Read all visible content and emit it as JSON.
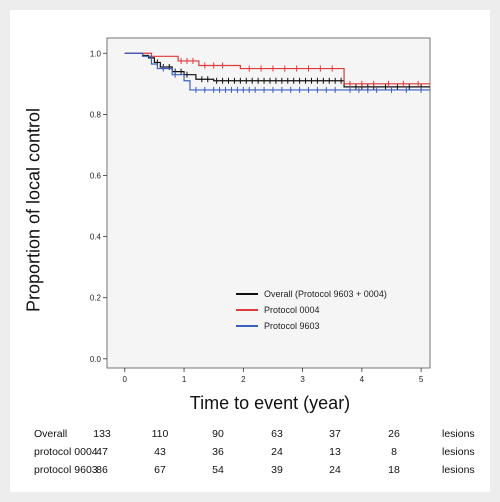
{
  "chart_data": {
    "type": "line",
    "ylabel": "Proportion of local control",
    "xlabel": "Time to event (year)",
    "xlim": [
      -0.3,
      5.15
    ],
    "ylim": [
      -0.03,
      1.05
    ],
    "x_ticks": [
      0,
      1,
      2,
      3,
      4,
      5
    ],
    "y_ticks": [
      0.0,
      0.2,
      0.4,
      0.6,
      0.8,
      1.0
    ],
    "y_tick_labels": [
      "0.0",
      "0.2",
      "0.4",
      "0.6",
      "0.8",
      "1.0"
    ],
    "grid": false,
    "legend_position": "bottom-right",
    "series": [
      {
        "name": "Overall (Protocol 9603 + 0004)",
        "color": "#111111",
        "steps": [
          [
            0,
            1.0
          ],
          [
            0.3,
            0.993
          ],
          [
            0.4,
            0.985
          ],
          [
            0.5,
            0.97
          ],
          [
            0.6,
            0.955
          ],
          [
            0.8,
            0.94
          ],
          [
            1.0,
            0.93
          ],
          [
            1.2,
            0.915
          ],
          [
            1.5,
            0.91
          ],
          [
            3.7,
            0.89
          ],
          [
            5.15,
            0.89
          ]
        ],
        "censor_x": [
          0.55,
          0.65,
          0.75,
          0.85,
          0.95,
          1.05,
          1.3,
          1.4,
          1.55,
          1.65,
          1.75,
          1.85,
          1.95,
          2.05,
          2.15,
          2.25,
          2.35,
          2.45,
          2.55,
          2.65,
          2.75,
          2.85,
          2.95,
          3.05,
          3.15,
          3.25,
          3.35,
          3.45,
          3.55,
          3.65,
          3.8,
          3.9,
          4.0,
          4.1,
          4.2,
          4.4,
          4.6,
          4.8,
          5.0
        ]
      },
      {
        "name": "Protocol 0004",
        "color": "#e03a3a",
        "steps": [
          [
            0,
            1.0
          ],
          [
            0.45,
            0.99
          ],
          [
            0.9,
            0.975
          ],
          [
            1.25,
            0.96
          ],
          [
            1.95,
            0.95
          ],
          [
            3.7,
            0.9
          ],
          [
            5.15,
            0.9
          ]
        ],
        "censor_x": [
          0.95,
          1.05,
          1.15,
          1.35,
          1.5,
          1.65,
          2.1,
          2.3,
          2.5,
          2.7,
          2.9,
          3.1,
          3.3,
          3.5,
          3.8,
          4.0,
          4.2,
          4.45,
          4.7,
          4.95
        ]
      },
      {
        "name": "Protocol 9603",
        "color": "#3b5fc0",
        "steps": [
          [
            0,
            1.0
          ],
          [
            0.3,
            0.99
          ],
          [
            0.45,
            0.965
          ],
          [
            0.55,
            0.95
          ],
          [
            0.8,
            0.93
          ],
          [
            1.0,
            0.91
          ],
          [
            1.1,
            0.88
          ],
          [
            5.15,
            0.88
          ]
        ],
        "censor_x": [
          0.65,
          0.85,
          1.2,
          1.35,
          1.5,
          1.6,
          1.7,
          1.8,
          1.9,
          2.0,
          2.1,
          2.2,
          2.35,
          2.5,
          2.65,
          2.8,
          2.95,
          3.1,
          3.25,
          3.4,
          3.55,
          3.8,
          3.95,
          4.1,
          4.25,
          4.5,
          4.75,
          5.0
        ]
      }
    ]
  },
  "risk_table": {
    "unit": "lesions",
    "columns_x": [
      0,
      1,
      2,
      3,
      4,
      5
    ],
    "rows": [
      {
        "label": "Overall",
        "values": [
          "133",
          "110",
          "90",
          "63",
          "37",
          "26"
        ]
      },
      {
        "label": "protocol 0004",
        "values": [
          "47",
          "43",
          "36",
          "24",
          "13",
          "8"
        ]
      },
      {
        "label": "protocol 9603",
        "values": [
          "86",
          "67",
          "54",
          "39",
          "24",
          "18"
        ]
      }
    ]
  }
}
